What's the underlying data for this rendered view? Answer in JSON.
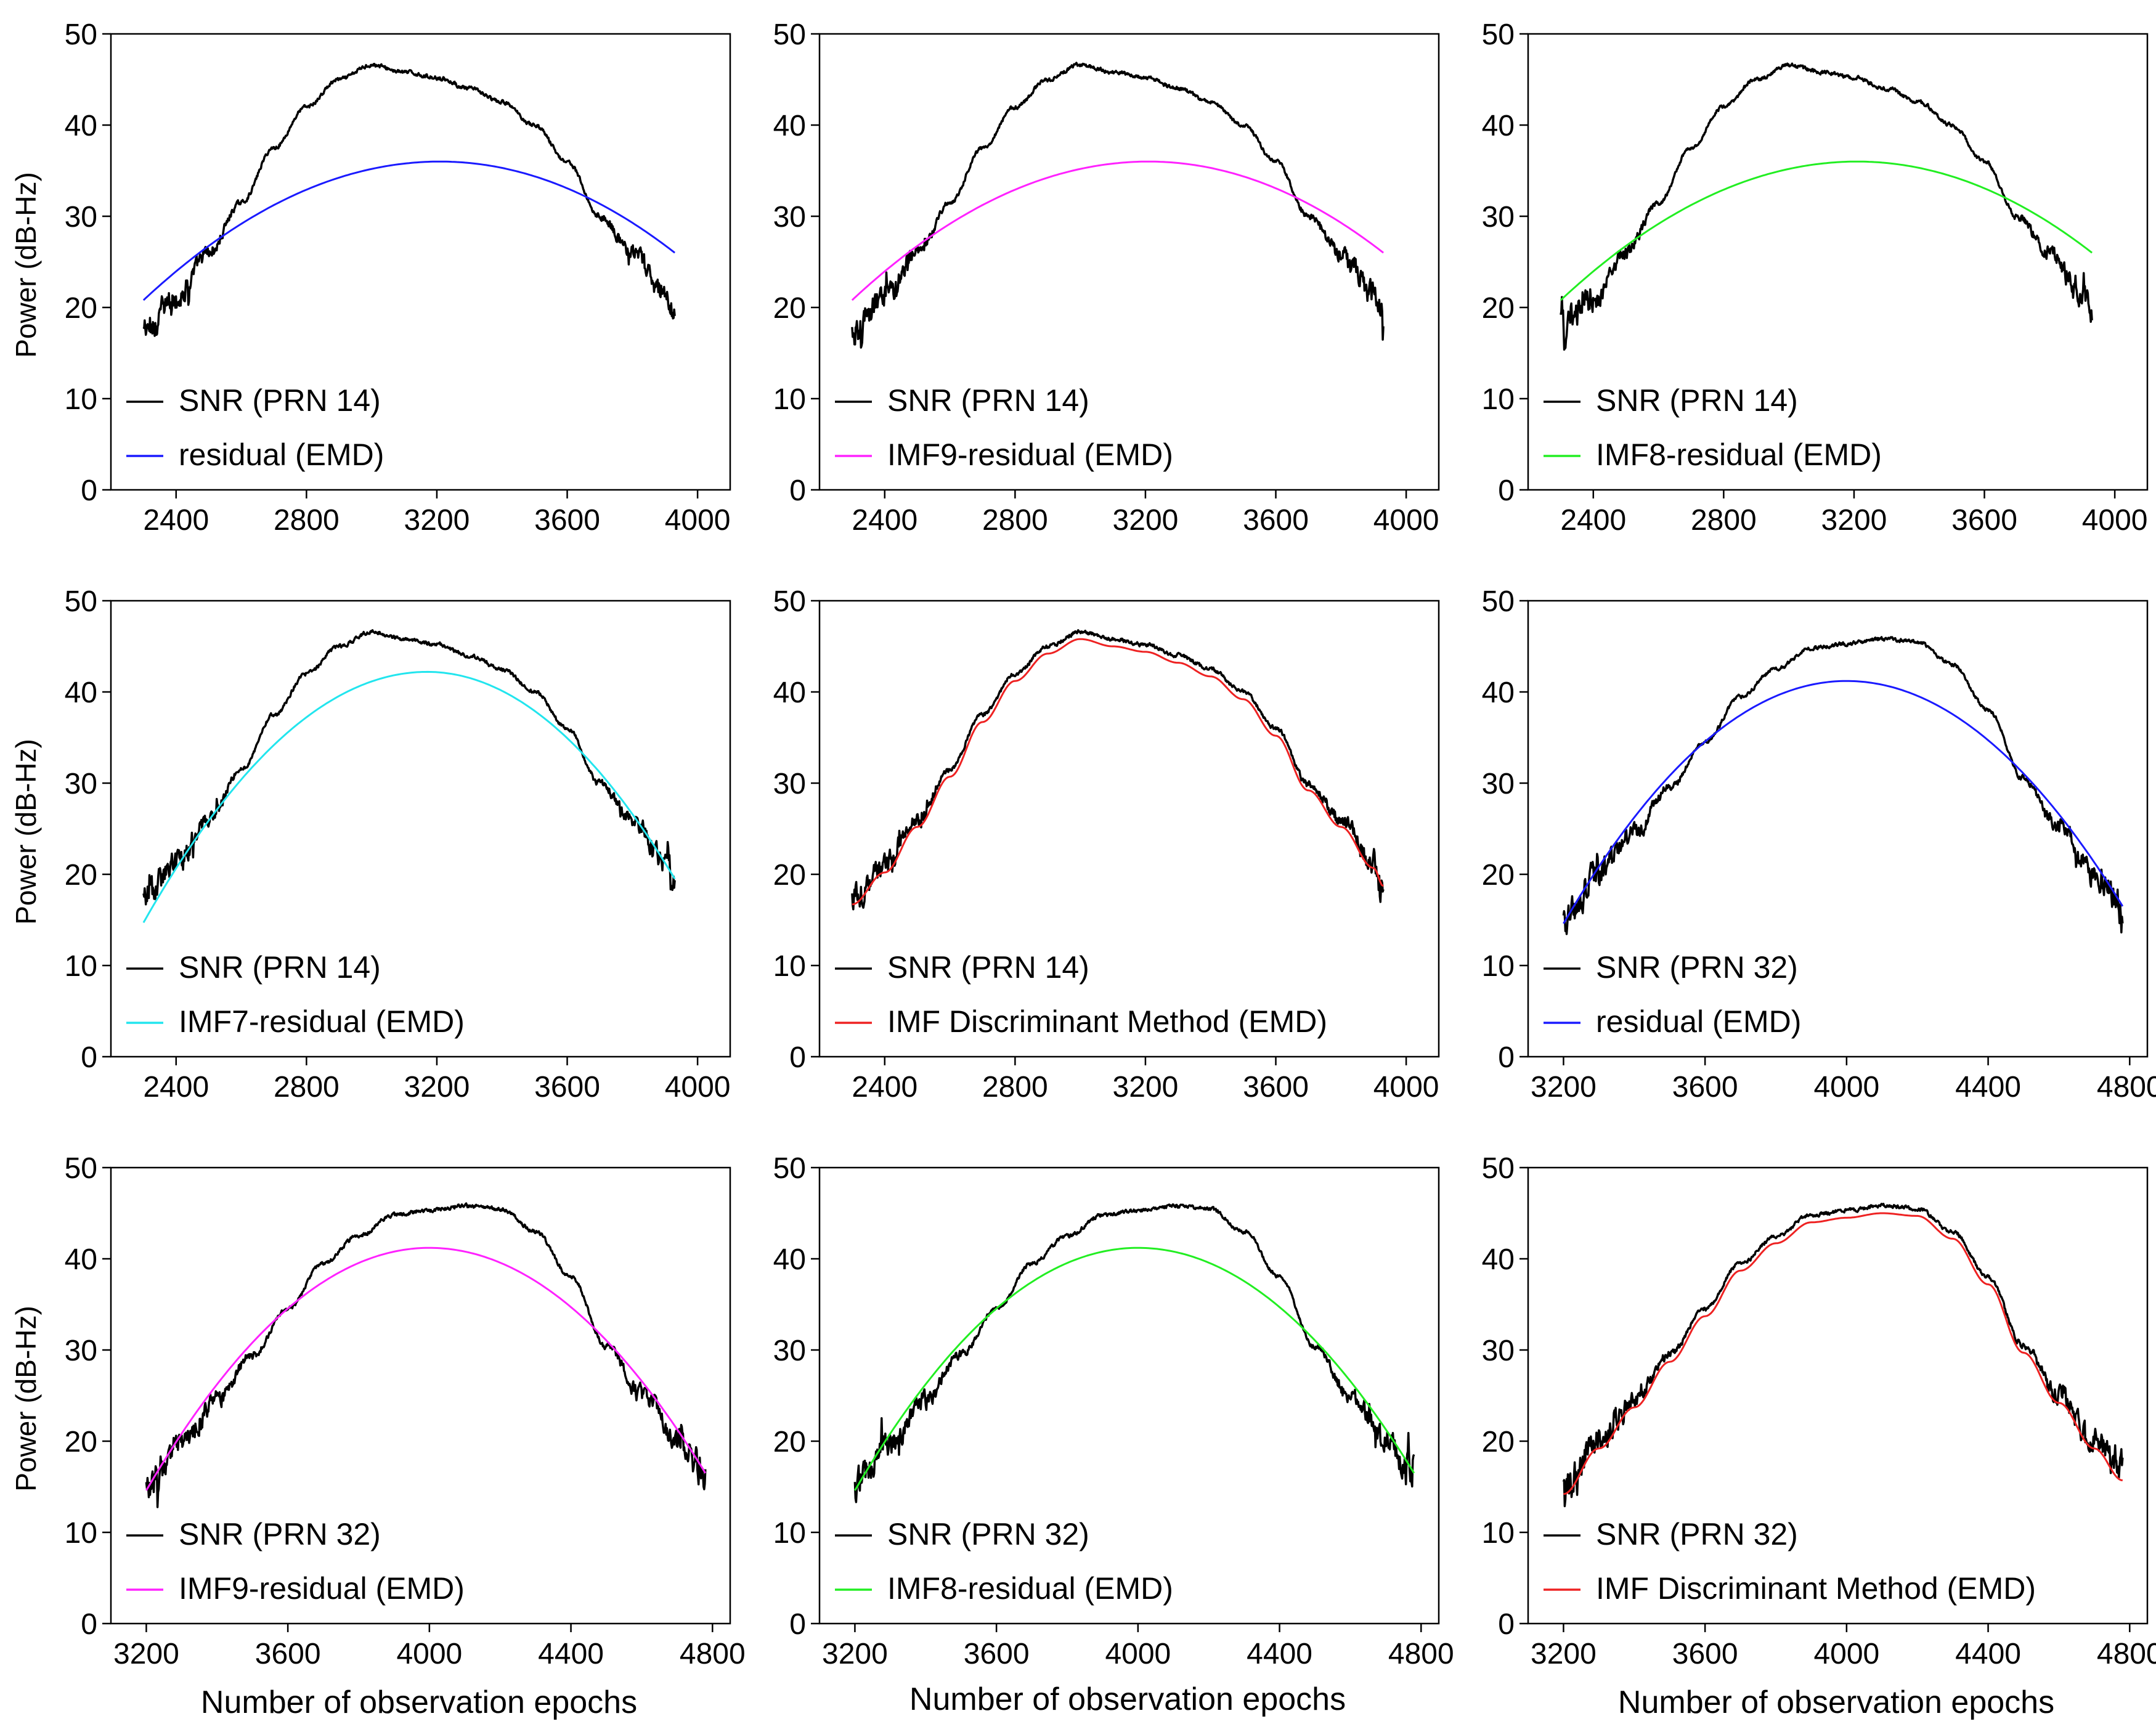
{
  "figure": {
    "ylabel": "Power (dB-Hz)",
    "xlabel": "Number of observation epochs"
  },
  "chart_data": [
    {
      "type": "line",
      "panel": "r1c1",
      "xlim": [
        2200,
        4100
      ],
      "ylim": [
        0,
        50
      ],
      "xticks": [
        2400,
        2800,
        3200,
        3600,
        4000
      ],
      "yticks": [
        0,
        10,
        20,
        30,
        40,
        50
      ],
      "ylabel": "Power (dB-Hz)",
      "xlabel": "",
      "series": [
        {
          "name": "SNR (PRN 14)",
          "color": "#000000",
          "kind": "snr",
          "profile": "prn14",
          "x_range": [
            2300,
            3930
          ]
        },
        {
          "name": "residual (EMD)",
          "color": "#1a1aff",
          "kind": "parabola",
          "x_range": [
            2300,
            3930
          ],
          "vertex": [
            3210,
            36
          ],
          "endpoints": [
            20.8,
            26
          ]
        }
      ]
    },
    {
      "type": "line",
      "panel": "r1c2",
      "xlim": [
        2200,
        4100
      ],
      "ylim": [
        0,
        50
      ],
      "xticks": [
        2400,
        2800,
        3200,
        3600,
        4000
      ],
      "yticks": [
        0,
        10,
        20,
        30,
        40,
        50
      ],
      "ylabel": "",
      "xlabel": "",
      "series": [
        {
          "name": "SNR (PRN 14)",
          "color": "#000000",
          "kind": "snr",
          "profile": "prn14",
          "x_range": [
            2300,
            3930
          ]
        },
        {
          "name": "IMF9-residual (EMD)",
          "color": "#ff22ff",
          "kind": "parabola",
          "x_range": [
            2300,
            3930
          ],
          "vertex": [
            3210,
            36
          ],
          "endpoints": [
            20.8,
            26
          ]
        }
      ]
    },
    {
      "type": "line",
      "panel": "r1c3",
      "xlim": [
        2200,
        4100
      ],
      "ylim": [
        0,
        50
      ],
      "xticks": [
        2400,
        2800,
        3200,
        3600,
        4000
      ],
      "yticks": [
        0,
        10,
        20,
        30,
        40,
        50
      ],
      "ylabel": "",
      "xlabel": "",
      "series": [
        {
          "name": "SNR (PRN 14)",
          "color": "#000000",
          "kind": "snr",
          "profile": "prn14",
          "x_range": [
            2300,
            3930
          ]
        },
        {
          "name": "IMF8-residual (EMD)",
          "color": "#22ee22",
          "kind": "parabola",
          "x_range": [
            2300,
            3930
          ],
          "vertex": [
            3210,
            36
          ],
          "endpoints": [
            20.8,
            26
          ]
        }
      ]
    },
    {
      "type": "line",
      "panel": "r2c1",
      "xlim": [
        2200,
        4100
      ],
      "ylim": [
        0,
        50
      ],
      "xticks": [
        2400,
        2800,
        3200,
        3600,
        4000
      ],
      "yticks": [
        0,
        10,
        20,
        30,
        40,
        50
      ],
      "ylabel": "Power (dB-Hz)",
      "xlabel": "",
      "series": [
        {
          "name": "SNR (PRN 14)",
          "color": "#000000",
          "kind": "snr",
          "profile": "prn14",
          "x_range": [
            2300,
            3930
          ]
        },
        {
          "name": "IMF7-residual (EMD)",
          "color": "#22e5ee",
          "kind": "parabola",
          "x_range": [
            2300,
            3930
          ],
          "vertex": [
            3170,
            42.2
          ],
          "endpoints": [
            14.7,
            19.5
          ]
        }
      ]
    },
    {
      "type": "line",
      "panel": "r2c2",
      "xlim": [
        2200,
        4100
      ],
      "ylim": [
        0,
        50
      ],
      "xticks": [
        2400,
        2800,
        3200,
        3600,
        4000
      ],
      "yticks": [
        0,
        10,
        20,
        30,
        40,
        50
      ],
      "ylabel": "",
      "xlabel": "",
      "series": [
        {
          "name": "SNR (PRN 14)",
          "color": "#000000",
          "kind": "snr",
          "profile": "prn14",
          "x_range": [
            2300,
            3930
          ]
        },
        {
          "name": "IMF Discriminant Method (EMD)",
          "color": "#ee2222",
          "kind": "smooth",
          "profile": "prn14",
          "x_range": [
            2300,
            3930
          ]
        }
      ]
    },
    {
      "type": "line",
      "panel": "r2c3",
      "xlim": [
        3100,
        4850
      ],
      "ylim": [
        0,
        50
      ],
      "xticks": [
        3200,
        3600,
        4000,
        4400,
        4800
      ],
      "yticks": [
        0,
        10,
        20,
        30,
        40,
        50
      ],
      "ylabel": "",
      "xlabel": "",
      "series": [
        {
          "name": "SNR (PRN 32)",
          "color": "#000000",
          "kind": "snr",
          "profile": "prn32",
          "x_range": [
            3200,
            4780
          ]
        },
        {
          "name": "residual (EMD)",
          "color": "#1a1aff",
          "kind": "parabola",
          "x_range": [
            3200,
            4780
          ],
          "vertex": [
            4000,
            41.2
          ],
          "endpoints": [
            14.6,
            16.5
          ]
        }
      ]
    },
    {
      "type": "line",
      "panel": "r3c1",
      "xlim": [
        3100,
        4850
      ],
      "ylim": [
        0,
        50
      ],
      "xticks": [
        3200,
        3600,
        4000,
        4400,
        4800
      ],
      "yticks": [
        0,
        10,
        20,
        30,
        40,
        50
      ],
      "ylabel": "Power (dB-Hz)",
      "xlabel": "Number of observation epochs",
      "series": [
        {
          "name": "SNR (PRN 32)",
          "color": "#000000",
          "kind": "snr",
          "profile": "prn32",
          "x_range": [
            3200,
            4780
          ]
        },
        {
          "name": "IMF9-residual (EMD)",
          "color": "#ff22ff",
          "kind": "parabola",
          "x_range": [
            3200,
            4780
          ],
          "vertex": [
            4000,
            41.2
          ],
          "endpoints": [
            14.6,
            16.5
          ]
        }
      ]
    },
    {
      "type": "line",
      "panel": "r3c2",
      "xlim": [
        3100,
        4850
      ],
      "ylim": [
        0,
        50
      ],
      "xticks": [
        3200,
        3600,
        4000,
        4400,
        4800
      ],
      "yticks": [
        0,
        10,
        20,
        30,
        40,
        50
      ],
      "ylabel": "",
      "xlabel": "Number of observation epochs",
      "series": [
        {
          "name": "SNR (PRN 32)",
          "color": "#000000",
          "kind": "snr",
          "profile": "prn32",
          "x_range": [
            3200,
            4780
          ]
        },
        {
          "name": "IMF8-residual (EMD)",
          "color": "#22ee22",
          "kind": "parabola",
          "x_range": [
            3200,
            4780
          ],
          "vertex": [
            4000,
            41.2
          ],
          "endpoints": [
            14.6,
            16.5
          ]
        }
      ]
    },
    {
      "type": "line",
      "panel": "r3c3",
      "xlim": [
        3100,
        4850
      ],
      "ylim": [
        0,
        50
      ],
      "xticks": [
        3200,
        3600,
        4000,
        4400,
        4800
      ],
      "yticks": [
        0,
        10,
        20,
        30,
        40,
        50
      ],
      "ylabel": "",
      "xlabel": "Number of observation epochs",
      "series": [
        {
          "name": "SNR (PRN 32)",
          "color": "#000000",
          "kind": "snr",
          "profile": "prn32",
          "x_range": [
            3200,
            4780
          ]
        },
        {
          "name": "IMF Discriminant Method (EMD)",
          "color": "#ee2222",
          "kind": "smooth",
          "profile": "prn32",
          "x_range": [
            3200,
            4780
          ]
        }
      ]
    }
  ],
  "profiles": {
    "prn14": [
      [
        2300,
        17.5
      ],
      [
        2400,
        21
      ],
      [
        2500,
        26
      ],
      [
        2600,
        31.5
      ],
      [
        2700,
        37.5
      ],
      [
        2800,
        42
      ],
      [
        2900,
        45
      ],
      [
        3000,
        46.6
      ],
      [
        3100,
        45.8
      ],
      [
        3200,
        45.2
      ],
      [
        3300,
        44
      ],
      [
        3400,
        42.5
      ],
      [
        3500,
        40
      ],
      [
        3600,
        36
      ],
      [
        3700,
        30
      ],
      [
        3800,
        26
      ],
      [
        3900,
        21.5
      ],
      [
        3930,
        19.5
      ]
    ],
    "prn32": [
      [
        3200,
        15
      ],
      [
        3300,
        20
      ],
      [
        3400,
        24.5
      ],
      [
        3500,
        29.5
      ],
      [
        3600,
        34.5
      ],
      [
        3700,
        39.5
      ],
      [
        3800,
        42.5
      ],
      [
        3900,
        44.8
      ],
      [
        4000,
        45.3
      ],
      [
        4100,
        45.8
      ],
      [
        4200,
        45.5
      ],
      [
        4300,
        43
      ],
      [
        4400,
        38
      ],
      [
        4500,
        30.5
      ],
      [
        4600,
        25
      ],
      [
        4700,
        20
      ],
      [
        4780,
        16.5
      ]
    ]
  }
}
